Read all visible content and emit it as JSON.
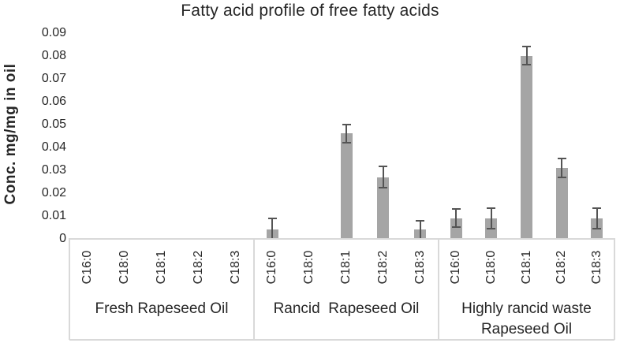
{
  "chart_data": {
    "type": "bar",
    "title": "Fatty acid profile of free fatty acids",
    "ylabel": "Conc. mg/mg in oil",
    "xlabel": "",
    "ylim": [
      0,
      0.09
    ],
    "ytick_step": 0.01,
    "yticks": [
      "0.09",
      "0.08",
      "0.07",
      "0.06",
      "0.05",
      "0.04",
      "0.03",
      "0.02",
      "0.01",
      "0"
    ],
    "grid": false,
    "legend": false,
    "error_bars": true,
    "colors": {
      "bar_fill": "#a5a5a5",
      "error_bar": "#545454",
      "axis_line": "#d9d9d9",
      "text": "#262626"
    },
    "categories": [
      "C16:0",
      "C18:0",
      "C18:1",
      "C18:2",
      "C18:3"
    ],
    "groups": [
      {
        "label": "Fresh Rapeseed Oil",
        "values": [
          0,
          0,
          0,
          0,
          0
        ],
        "errors": [
          0,
          0,
          0,
          0,
          0
        ]
      },
      {
        "label": "Rancid  Rapeseed Oil",
        "values": [
          0.004,
          0,
          0.046,
          0.027,
          0.004
        ],
        "errors": [
          0.005,
          0,
          0.004,
          0.0045,
          0.004
        ]
      },
      {
        "label": "Highly rancid waste\nRapeseed Oil",
        "values": [
          0.009,
          0.009,
          0.08,
          0.031,
          0.009
        ],
        "errors": [
          0.004,
          0.0045,
          0.004,
          0.004,
          0.0045
        ]
      }
    ]
  }
}
